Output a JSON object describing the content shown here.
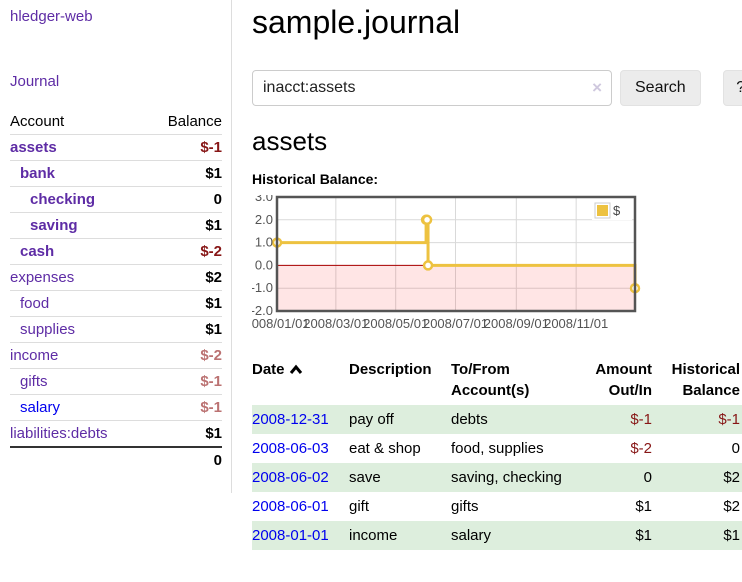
{
  "sidebar": {
    "brand": "hledger-web",
    "nav_journal": "Journal",
    "accounts_table": {
      "headers": {
        "account": "Account",
        "balance": "Balance"
      },
      "rows": [
        {
          "account": "assets",
          "balance": "$-1",
          "indent": 0,
          "bold": true
        },
        {
          "account": "bank",
          "balance": "$1",
          "indent": 1,
          "bold": true
        },
        {
          "account": "checking",
          "balance": "0",
          "indent": 2,
          "bold": true
        },
        {
          "account": "saving",
          "balance": "$1",
          "indent": 2,
          "bold": true
        },
        {
          "account": "cash",
          "balance": "$-2",
          "indent": 1,
          "bold": true
        },
        {
          "account": "expenses",
          "balance": "$2",
          "indent": 0,
          "bold": false
        },
        {
          "account": "food",
          "balance": "$1",
          "indent": 1,
          "bold": false
        },
        {
          "account": "supplies",
          "balance": "$1",
          "indent": 1,
          "bold": false
        },
        {
          "account": "income",
          "balance": "$-2",
          "indent": 0,
          "bold": false
        },
        {
          "account": "gifts",
          "balance": "$-1",
          "indent": 1,
          "bold": false
        },
        {
          "account": "salary",
          "balance": "$-1",
          "indent": 1,
          "bold": false,
          "link": "blue"
        },
        {
          "account": "liabilities:debts",
          "balance": "$1",
          "indent": 0,
          "bold": false
        }
      ],
      "total": "0"
    }
  },
  "header": {
    "title": "sample.journal"
  },
  "search": {
    "value": "inacct:assets",
    "clear_icon": "×",
    "button": "Search",
    "help_button": "?"
  },
  "account_page": {
    "title": "assets",
    "chart_label": "Historical Balance:"
  },
  "chart_data": {
    "type": "line",
    "style": "steps",
    "title": "Historical Balance",
    "xlim": [
      "2008-01-01",
      "2008-12-31"
    ],
    "ylim": [
      -2,
      3
    ],
    "y_ticks": [
      "3.0",
      "2.0",
      "1.0",
      "0.0",
      "-1.0",
      "-2.0"
    ],
    "x_ticks": [
      "2008/01/01",
      "2008/03/01",
      "2008/05/01",
      "2008/07/01",
      "2008/09/01",
      "2008/11/01"
    ],
    "grid": true,
    "legend": {
      "label": "$",
      "position": "top-right"
    },
    "series": [
      {
        "name": "$",
        "color": "#edc240",
        "points": [
          {
            "x": "2008-01-01",
            "y": 1
          },
          {
            "x": "2008-06-01",
            "y": 2
          },
          {
            "x": "2008-06-02",
            "y": 2
          },
          {
            "x": "2008-06-03",
            "y": 0
          },
          {
            "x": "2008-12-31",
            "y": -1
          }
        ]
      }
    ],
    "zero_line_color": "#aa0000",
    "negative_region_fill": "rgba(255,0,0,0.10)",
    "border_color": "#545454",
    "grid_color": "#d9d9d9"
  },
  "register": {
    "columns": [
      {
        "label": "Date",
        "sorted": "asc"
      },
      {
        "label": "Description"
      },
      {
        "label": "To/From Account(s)"
      },
      {
        "label": "Amount Out/In"
      },
      {
        "label": "Historical Balance"
      }
    ],
    "rows": [
      {
        "date": "2008-12-31",
        "description": "pay off",
        "accounts": "debts",
        "amount": "$-1",
        "balance": "$-1"
      },
      {
        "date": "2008-06-03",
        "description": "eat & shop",
        "accounts": "food, supplies",
        "amount": "$-2",
        "balance": "0"
      },
      {
        "date": "2008-06-02",
        "description": "save",
        "accounts": "saving, checking",
        "amount": "0",
        "balance": "$2"
      },
      {
        "date": "2008-06-01",
        "description": "gift",
        "accounts": "gifts",
        "amount": "$1",
        "balance": "$2"
      },
      {
        "date": "2008-01-01",
        "description": "income",
        "accounts": "salary",
        "amount": "$1",
        "balance": "$1"
      }
    ]
  }
}
